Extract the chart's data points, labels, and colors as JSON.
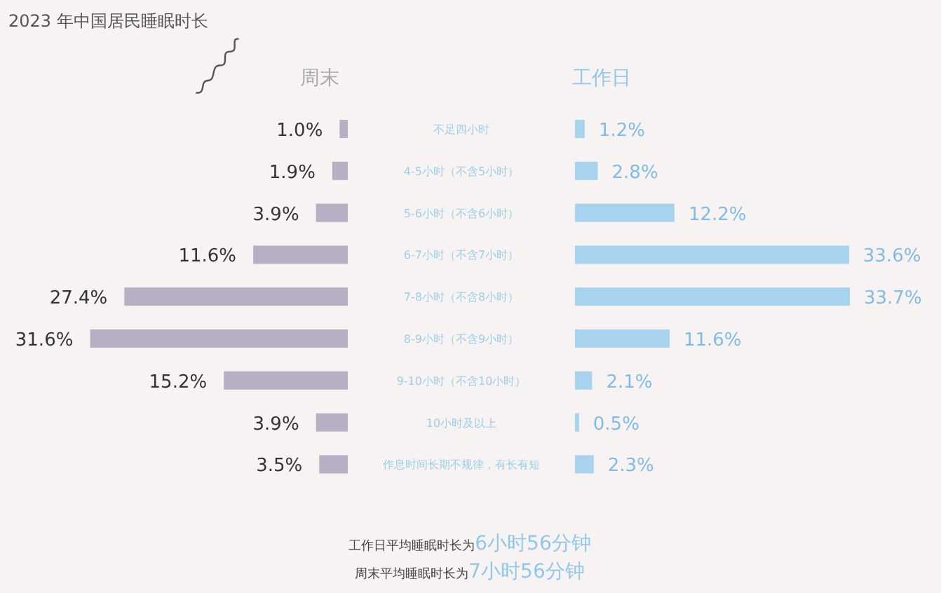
{
  "chart_data": [
    {
      "type": "bar",
      "orientation": "horizontal",
      "title": "2023 年中国居民睡眠时长",
      "categories": [
        "不足四小时",
        "4-5小时（不含5小时）",
        "5-6小时（不含6小时）",
        "6-7小时（不含7小时）",
        "7-8小时（不含8小时）",
        "8-9小时（不含9小时）",
        "9-10小时（不含10小时）",
        "10小时及以上",
        "作息时间长期不规律，有长有短"
      ],
      "series": [
        {
          "name": "周末",
          "color": "#b7afc3",
          "values": [
            1.0,
            1.9,
            3.9,
            11.6,
            27.4,
            31.6,
            15.2,
            3.9,
            3.5
          ],
          "value_labels": [
            "1.0%",
            "1.9%",
            "3.9%",
            "11.6%",
            "27.4%",
            "31.6%",
            "15.2%",
            "3.9%",
            "3.5%"
          ]
        }
      ],
      "annotations": [
        "工作日平均睡眠时长为6小时56分钟",
        "周末平均睡眠时长为7小时56分钟"
      ]
    },
    {
      "type": "bar",
      "orientation": "horizontal",
      "categories": [
        null,
        null,
        null,
        null,
        null,
        null,
        null,
        null,
        null
      ],
      "series": [
        {
          "name": "工作日",
          "color": "#a8d3ef",
          "values": [
            1.2,
            2.8,
            12.2,
            33.6,
            33.7,
            11.6,
            2.1,
            0.5,
            2.3
          ],
          "value_labels": [
            "1.2%",
            "2.8%",
            "12.2%",
            "33.6%",
            "33.7%",
            "11.6%",
            "2.1%",
            "0.5%",
            "2.3%"
          ]
        }
      ]
    }
  ]
}
